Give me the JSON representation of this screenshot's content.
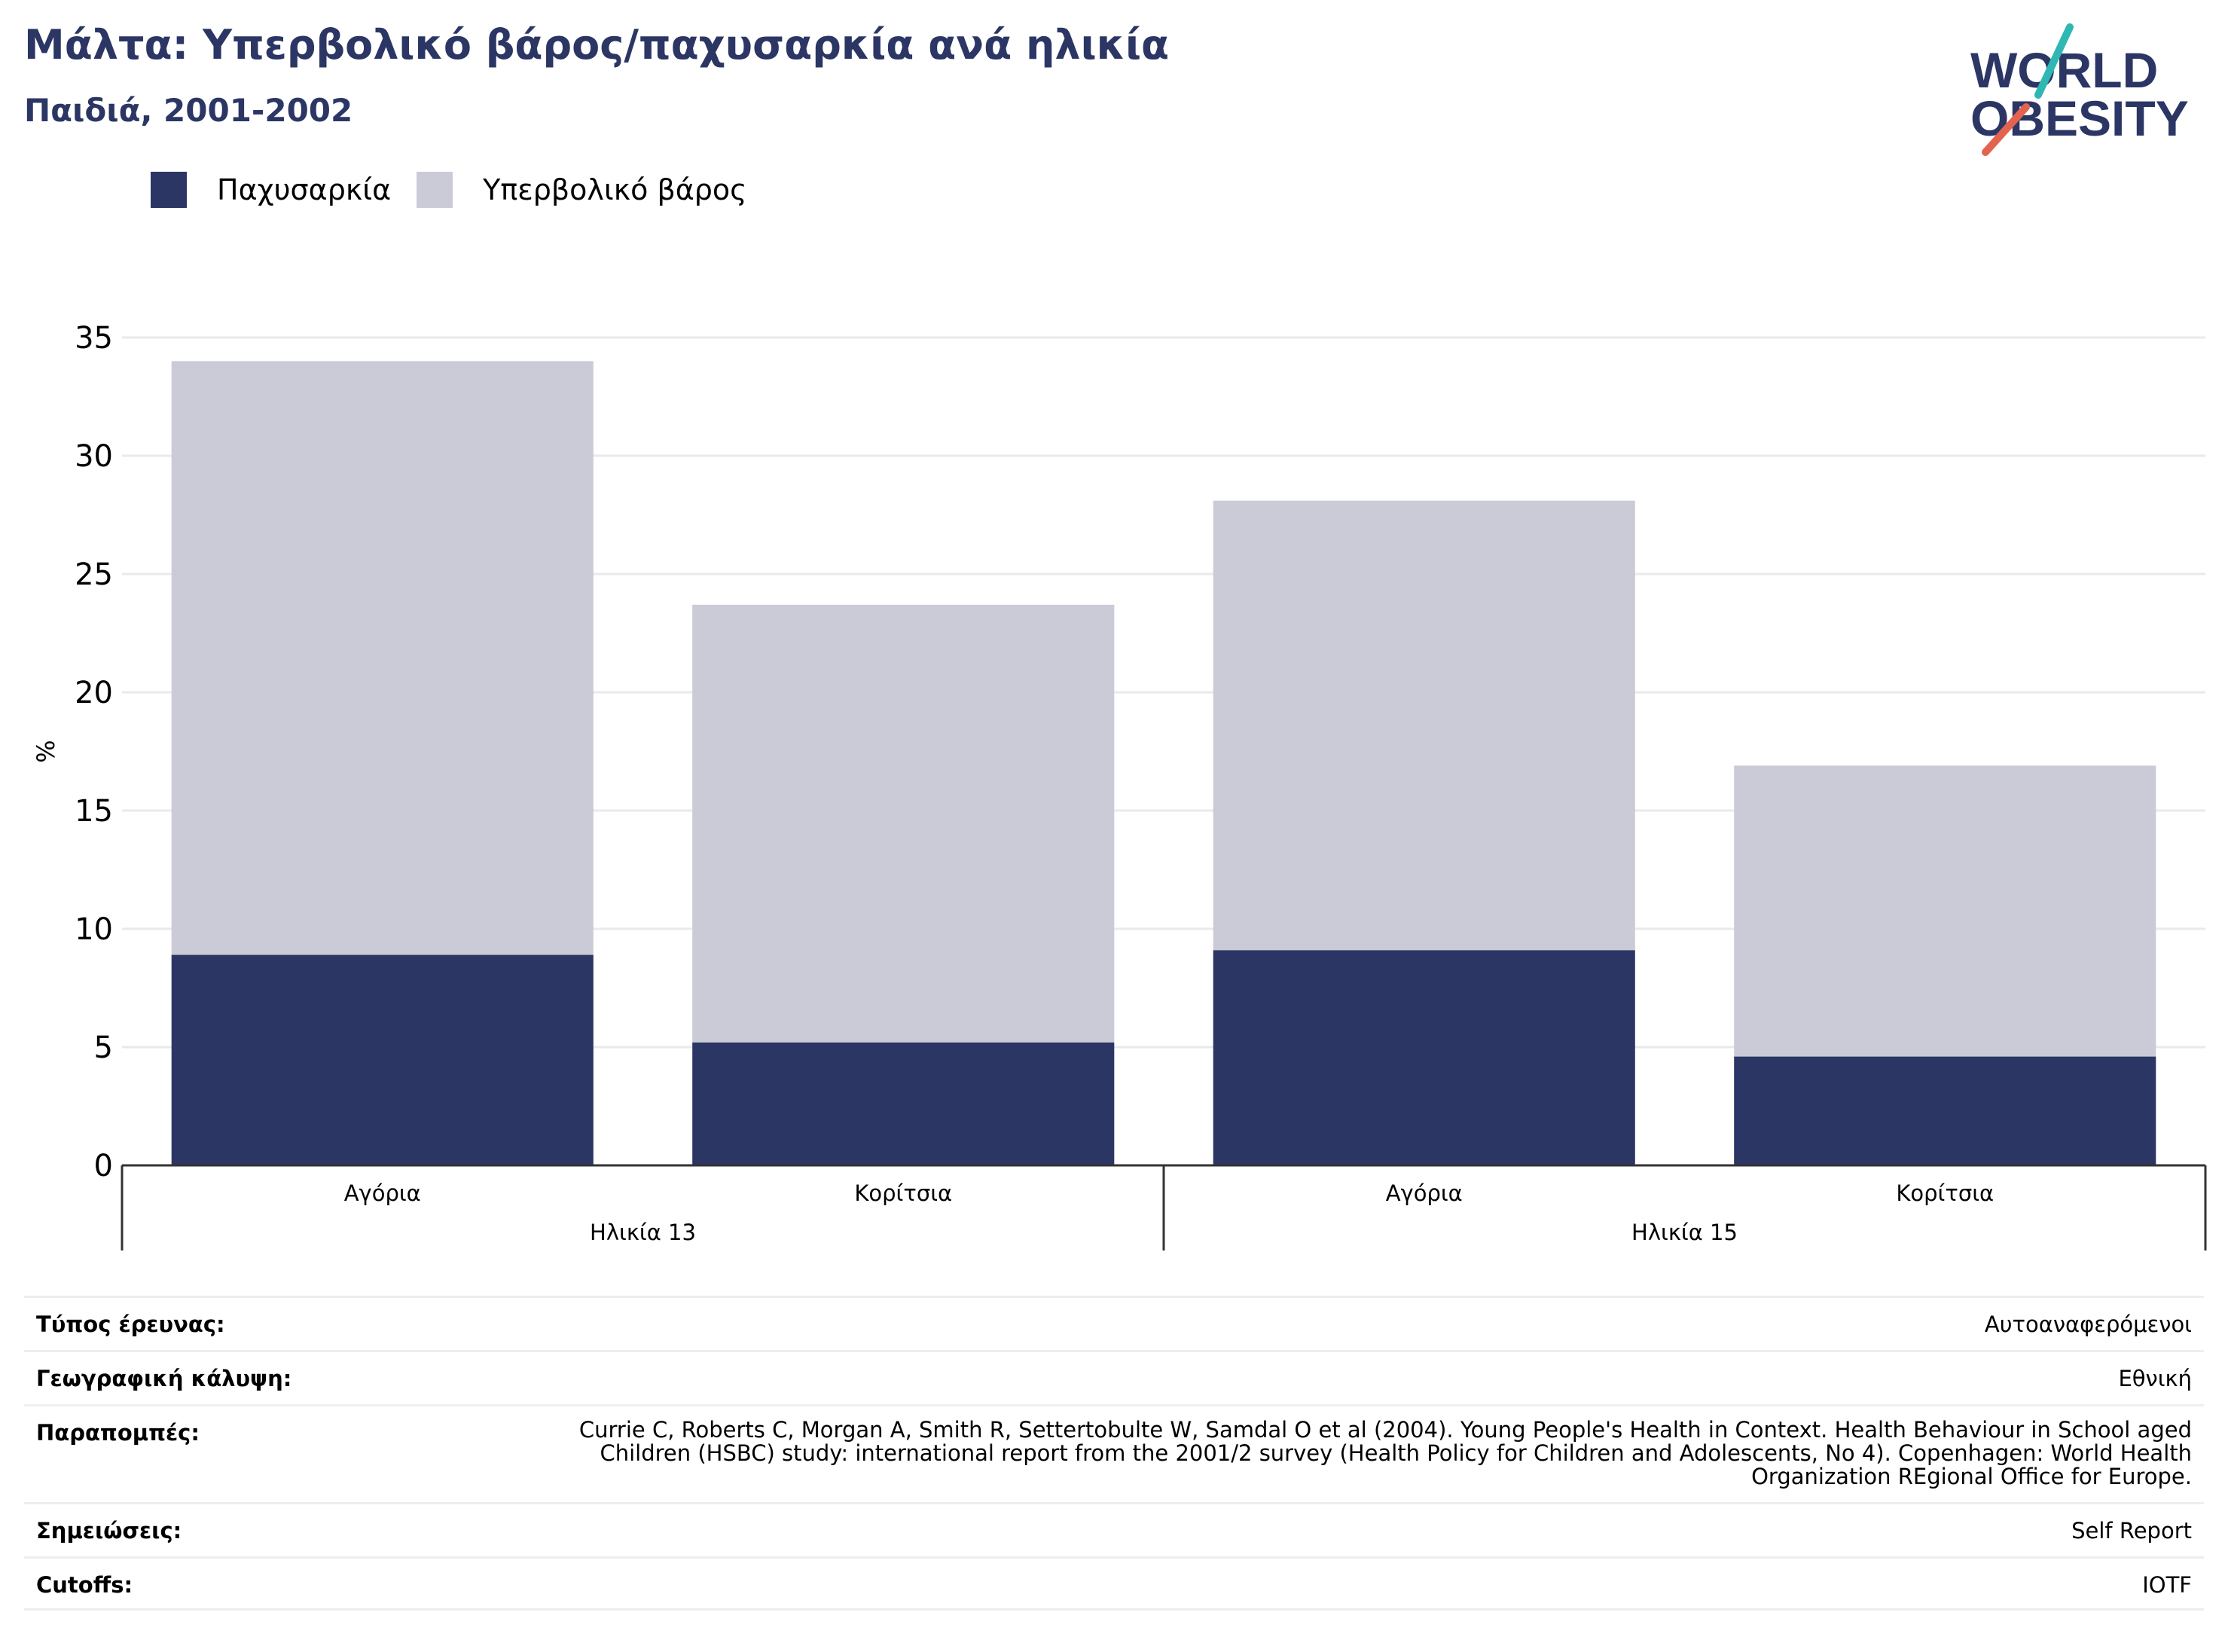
{
  "header": {
    "title": "Μάλτα: Υπερβολικό βάρος/παχυσαρκία ανά ηλικία",
    "subtitle": "Παιδιά, 2001-2002"
  },
  "logo": {
    "line1": "WORLD",
    "line2": "OBESITY"
  },
  "colors": {
    "obesity": "#2b3664",
    "overweight": "#cacbd7",
    "title": "#2b3664",
    "logo_teal": "#2fb8b3",
    "logo_coral": "#e2644e"
  },
  "chart_data": {
    "type": "bar",
    "stacked": true,
    "ylabel": "%",
    "ylim": [
      0,
      35
    ],
    "yticks": [
      0,
      5,
      10,
      15,
      20,
      25,
      30,
      35
    ],
    "grid": true,
    "legend_position": "top-left",
    "categories": [
      "Αγόρια",
      "Κορίτσια",
      "Αγόρια",
      "Κορίτσια"
    ],
    "groups": [
      {
        "label": "Ηλικία 13",
        "categories": [
          0,
          1
        ]
      },
      {
        "label": "Ηλικία 15",
        "categories": [
          2,
          3
        ]
      }
    ],
    "series": [
      {
        "name": "Παχυσαρκία",
        "values": [
          8.9,
          5.2,
          9.1,
          4.6
        ]
      },
      {
        "name": "Υπερβολικό βάρος",
        "values": [
          25.1,
          18.5,
          19.0,
          12.3
        ]
      }
    ]
  },
  "info_table": [
    {
      "key": "Τύπος έρευνας:",
      "value": "Αυτοαναφερόμενοι"
    },
    {
      "key": "Γεωγραφική κάλυψη:",
      "value": "Εθνική"
    },
    {
      "key": "Παραπομπές:",
      "value": "Currie C, Roberts C, Morgan A, Smith R, Settertobulte W, Samdal O et al (2004). Young People's Health in Context. Health Behaviour in School aged Children (HSBC) study: international report from the 2001/2 survey (Health Policy for Children and Adolescents, No 4). Copenhagen: World Health Organization REgional Office for Europe."
    },
    {
      "key": "Σημειώσεις:",
      "value": "Self Report"
    },
    {
      "key": "Cutoffs:",
      "value": "IOTF"
    }
  ]
}
